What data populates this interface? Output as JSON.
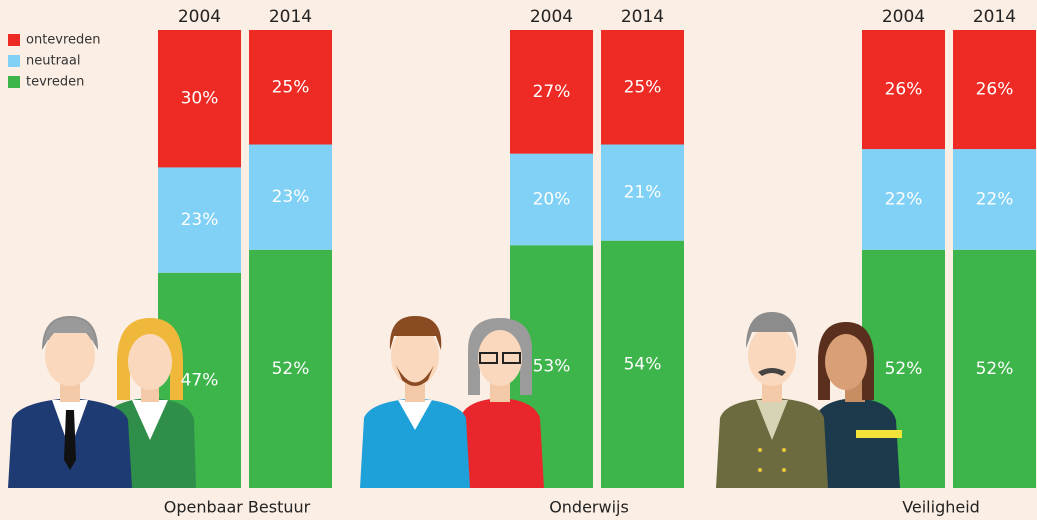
{
  "chart_data": {
    "type": "bar",
    "stacked": true,
    "legend": "top-left",
    "groups": [
      "Openbaar Bestuur",
      "Onderwijs",
      "Veiligheid"
    ],
    "categories": [
      "2004",
      "2014",
      "2004",
      "2014",
      "2004",
      "2014"
    ],
    "ylim": [
      0,
      100
    ],
    "series": [
      {
        "name": "tevreden",
        "color": "#3db54a",
        "values": [
          47,
          52,
          53,
          54,
          52,
          52
        ],
        "value_labels": [
          "47%",
          "52%",
          "53%",
          "54%",
          "52%",
          "52%"
        ]
      },
      {
        "name": "neutraal",
        "color": "#80d1f5",
        "values": [
          23,
          23,
          20,
          21,
          22,
          22
        ],
        "value_labels": [
          "23%",
          "23%",
          "20%",
          "21%",
          "22%",
          "22%"
        ]
      },
      {
        "name": "ontevreden",
        "color": "#ee2a24",
        "values": [
          30,
          25,
          27,
          25,
          26,
          26
        ],
        "value_labels": [
          "30%",
          "25%",
          "27%",
          "25%",
          "26%",
          "26%"
        ]
      }
    ]
  }
}
